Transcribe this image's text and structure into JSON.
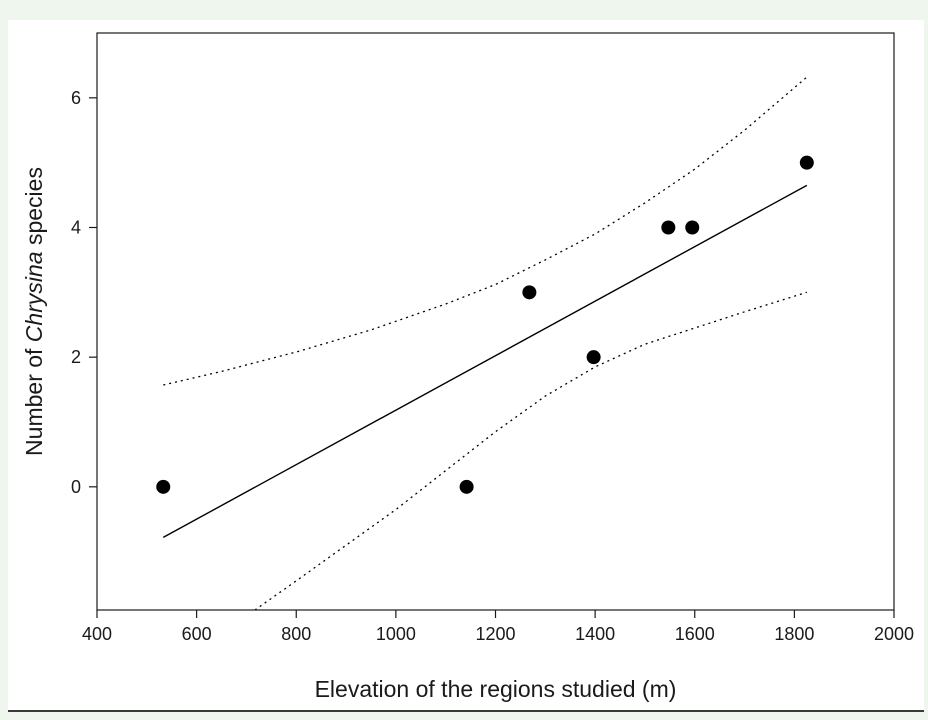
{
  "chart_data": {
    "type": "scatter",
    "title": "",
    "xlabel": "Elevation of the regions studied (m)",
    "ylabel_parts": [
      "Number of ",
      "Chrysina",
      " species"
    ],
    "xlim": [
      400,
      2000
    ],
    "ylim": [
      -1.9,
      7.0
    ],
    "xticks": [
      400,
      600,
      800,
      1000,
      1200,
      1400,
      1600,
      1800,
      2000
    ],
    "yticks": [
      0,
      2,
      4,
      6
    ],
    "grid": false,
    "points": [
      {
        "x": 533,
        "y": 0
      },
      {
        "x": 1142,
        "y": 0
      },
      {
        "x": 1268,
        "y": 3
      },
      {
        "x": 1397,
        "y": 2
      },
      {
        "x": 1547,
        "y": 4
      },
      {
        "x": 1595,
        "y": 4
      },
      {
        "x": 1825,
        "y": 5
      }
    ],
    "regression_line": [
      {
        "x": 533,
        "y": -0.78
      },
      {
        "x": 1825,
        "y": 4.65
      }
    ],
    "confidence_upper": [
      {
        "x": 533,
        "y": 1.57
      },
      {
        "x": 650,
        "y": 1.78
      },
      {
        "x": 800,
        "y": 2.08
      },
      {
        "x": 950,
        "y": 2.42
      },
      {
        "x": 1100,
        "y": 2.82
      },
      {
        "x": 1200,
        "y": 3.12
      },
      {
        "x": 1300,
        "y": 3.5
      },
      {
        "x": 1400,
        "y": 3.9
      },
      {
        "x": 1500,
        "y": 4.38
      },
      {
        "x": 1600,
        "y": 4.9
      },
      {
        "x": 1700,
        "y": 5.5
      },
      {
        "x": 1825,
        "y": 6.32
      }
    ],
    "confidence_lower": [
      {
        "x": 717,
        "y": -1.9
      },
      {
        "x": 800,
        "y": -1.45
      },
      {
        "x": 900,
        "y": -0.9
      },
      {
        "x": 1000,
        "y": -0.35
      },
      {
        "x": 1100,
        "y": 0.25
      },
      {
        "x": 1200,
        "y": 0.85
      },
      {
        "x": 1300,
        "y": 1.4
      },
      {
        "x": 1400,
        "y": 1.85
      },
      {
        "x": 1500,
        "y": 2.2
      },
      {
        "x": 1600,
        "y": 2.45
      },
      {
        "x": 1700,
        "y": 2.7
      },
      {
        "x": 1825,
        "y": 3.0
      }
    ],
    "colors": {
      "points": "#000000",
      "line": "#000000",
      "axis": "#1a1a1a"
    }
  }
}
